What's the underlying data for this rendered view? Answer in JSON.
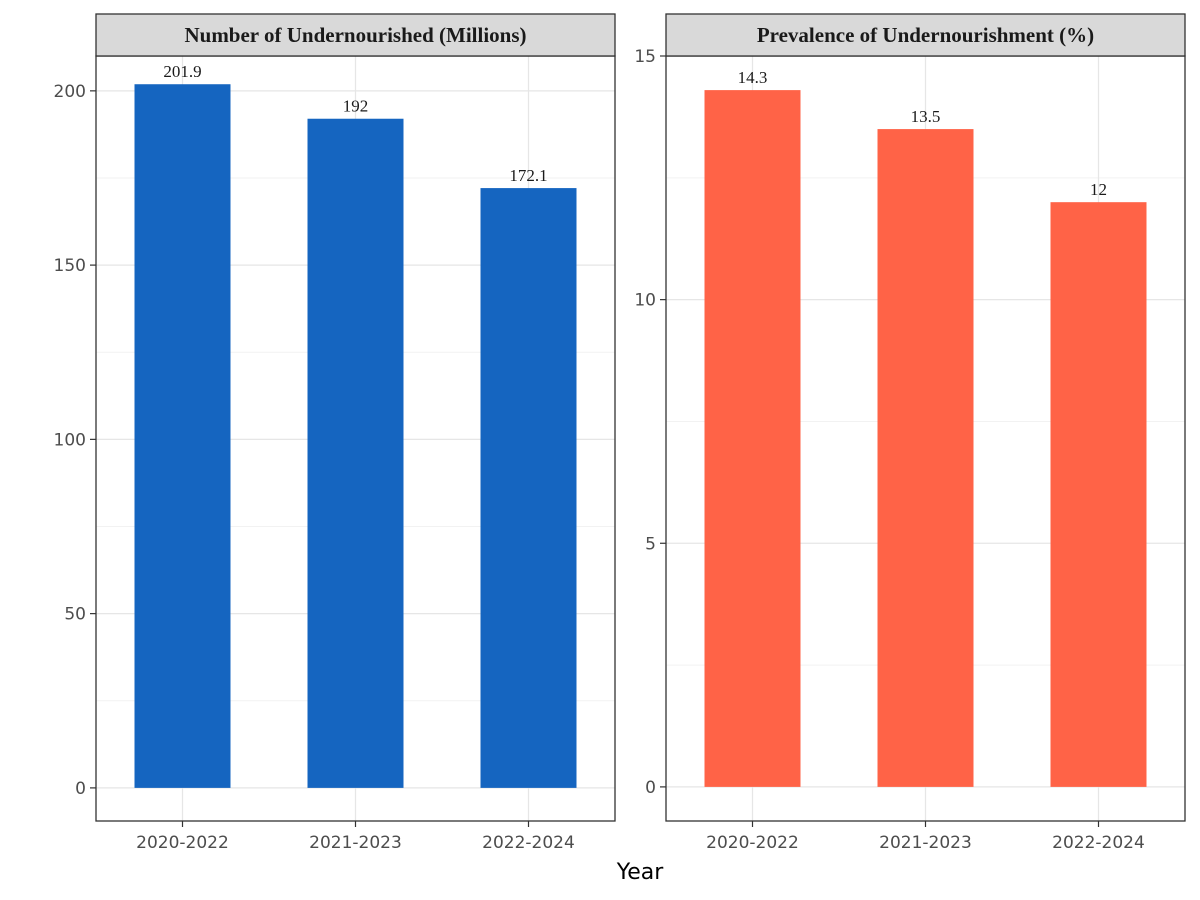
{
  "chart_data": [
    {
      "type": "bar",
      "title": "Number of Undernourished (Millions)",
      "categories": [
        "2020-2022",
        "2021-2023",
        "2022-2024"
      ],
      "values": [
        201.9,
        192,
        172.1
      ],
      "value_labels": [
        "201.9",
        "192",
        "172.1"
      ],
      "ylim": [
        -9.5,
        210
      ],
      "yticks": [
        0,
        50,
        100,
        150,
        200
      ],
      "ytick_labels": [
        "0",
        "50",
        "100",
        "150",
        "200"
      ],
      "color": "#1565C0"
    },
    {
      "type": "bar",
      "title": "Prevalence of Undernourishment (%)",
      "categories": [
        "2020-2022",
        "2021-2023",
        "2022-2024"
      ],
      "values": [
        14.3,
        13.5,
        12
      ],
      "value_labels": [
        "14.3",
        "13.5",
        "12"
      ],
      "ylim": [
        -0.7,
        15
      ],
      "yticks": [
        0,
        5,
        10,
        15
      ],
      "ytick_labels": [
        "0",
        "5",
        "10",
        "15"
      ],
      "color": "#FF6347"
    }
  ],
  "xlabel": "Year",
  "grid": true,
  "legend": "none"
}
